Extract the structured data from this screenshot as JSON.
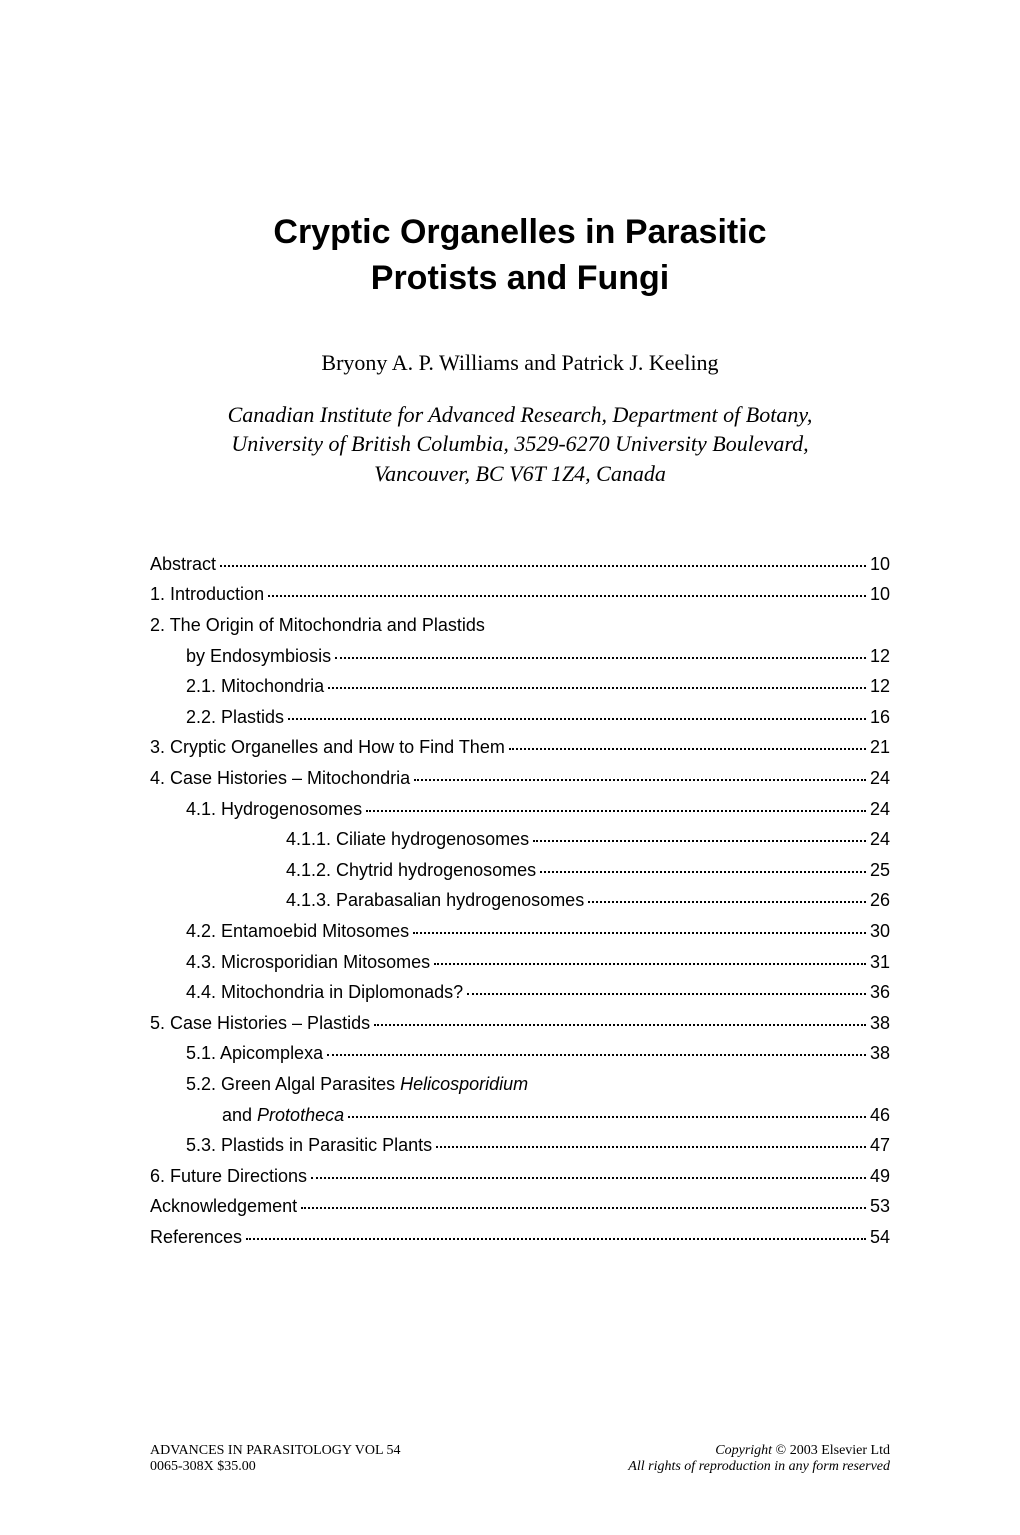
{
  "title_line1": "Cryptic Organelles in Parasitic",
  "title_line2": "Protists and Fungi",
  "authors": "Bryony A. P. Williams and Patrick J. Keeling",
  "affiliation_line1": "Canadian Institute for Advanced Research, Department of Botany,",
  "affiliation_line2": "University of British Columbia, 3529-6270 University Boulevard,",
  "affiliation_line3": "Vancouver, BC V6T 1Z4, Canada",
  "toc": [
    {
      "label": "Abstract",
      "page": "10",
      "indent": 0,
      "leader": true
    },
    {
      "label": "1. Introduction",
      "page": "10",
      "indent": 0,
      "leader": true
    },
    {
      "label": "2. The Origin of Mitochondria and Plastids",
      "page": "",
      "indent": 0,
      "leader": false
    },
    {
      "label": "by Endosymbiosis",
      "page": "12",
      "indent": 1,
      "leader": true
    },
    {
      "label": "2.1. Mitochondria",
      "page": "12",
      "indent": 1,
      "leader": true
    },
    {
      "label": "2.2. Plastids",
      "page": "16",
      "indent": 1,
      "leader": true
    },
    {
      "label": "3. Cryptic Organelles and How to Find Them",
      "page": "21",
      "indent": 0,
      "leader": true
    },
    {
      "label": "4. Case Histories – Mitochondria",
      "page": "24",
      "indent": 0,
      "leader": true
    },
    {
      "label": "4.1. Hydrogenosomes",
      "page": "24",
      "indent": 1,
      "leader": true
    },
    {
      "label": "4.1.1. Ciliate hydrogenosomes",
      "page": "24",
      "indent": 3,
      "leader": true
    },
    {
      "label": "4.1.2. Chytrid hydrogenosomes",
      "page": "25",
      "indent": 3,
      "leader": true
    },
    {
      "label": "4.1.3. Parabasalian hydrogenosomes",
      "page": "26",
      "indent": 3,
      "leader": true
    },
    {
      "label": "4.2. Entamoebid Mitosomes",
      "page": "30",
      "indent": 1,
      "leader": true
    },
    {
      "label": "4.3. Microsporidian Mitosomes",
      "page": "31",
      "indent": 1,
      "leader": true
    },
    {
      "label": "4.4. Mitochondria in Diplomonads?",
      "page": "36",
      "indent": 1,
      "leader": true
    },
    {
      "label": "5. Case Histories – Plastids",
      "page": "38",
      "indent": 0,
      "leader": true
    },
    {
      "label": "5.1. Apicomplexa",
      "page": "38",
      "indent": 1,
      "leader": true
    },
    {
      "label": "5.2. Green Algal Parasites Helicosporidium",
      "page": "",
      "indent": 1,
      "leader": false,
      "italicFrom": 27
    },
    {
      "label": "and Prototheca",
      "page": "46",
      "indent": 2,
      "leader": true,
      "italicFrom": 4
    },
    {
      "label": "5.3. Plastids in Parasitic Plants",
      "page": "47",
      "indent": 1,
      "leader": true
    },
    {
      "label": "6. Future Directions",
      "page": "49",
      "indent": 0,
      "leader": true
    },
    {
      "label": "Acknowledgement",
      "page": "53",
      "indent": 0,
      "leader": true
    },
    {
      "label": "References",
      "page": "54",
      "indent": 0,
      "leader": true
    }
  ],
  "footer": {
    "left_line1": "ADVANCES IN PARASITOLOGY VOL 54",
    "left_line2": "0065-308X    $35.00",
    "right_line1_prefix": "Copyright",
    "right_line1_symbol": " © ",
    "right_line1_suffix": "2003 Elsevier Ltd",
    "right_line2": "All rights of reproduction in any form reserved"
  }
}
